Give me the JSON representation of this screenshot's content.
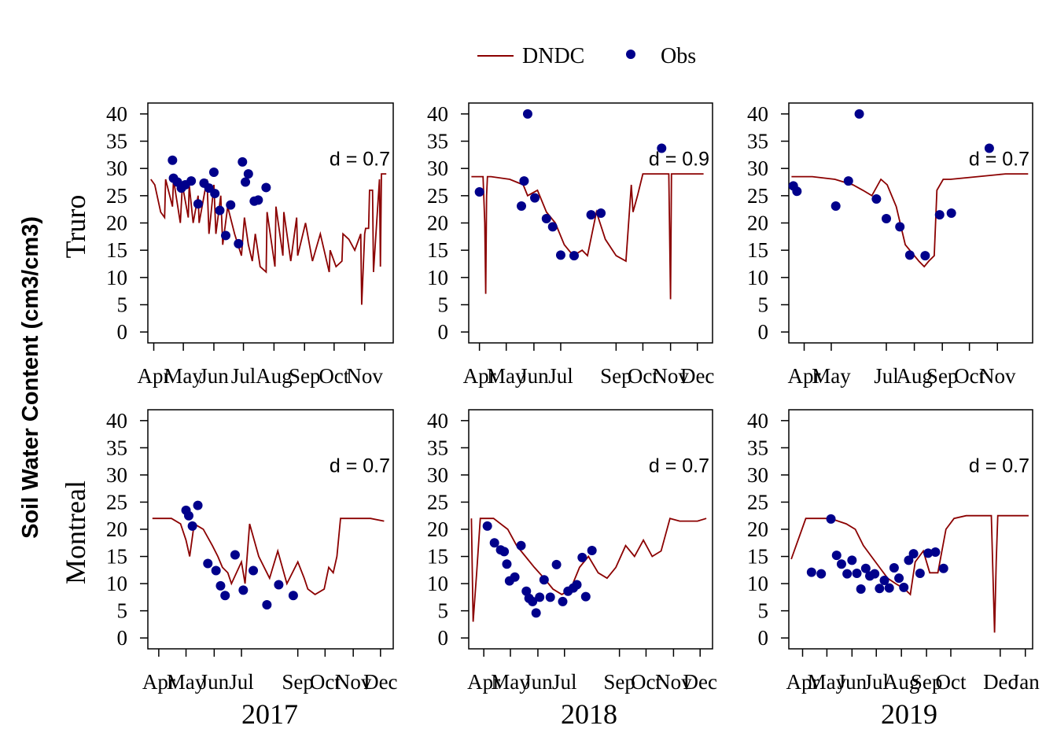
{
  "figure": {
    "ylabel": "Soil Water Content (cm3/cm3)",
    "legend": {
      "placement": "top-center",
      "items": [
        {
          "label": "DNDC",
          "kind": "line",
          "color": "#8b0000"
        },
        {
          "label": "Obs",
          "kind": "point",
          "color": "#00008b"
        }
      ]
    },
    "row_labels": [
      "Truro",
      "Montreal"
    ],
    "col_labels": [
      "2017",
      "2018",
      "2019"
    ],
    "y_ticks": [
      "0",
      "5",
      "10",
      "15",
      "20",
      "25",
      "30",
      "35",
      "40"
    ]
  },
  "chart_data": [
    {
      "type": "line",
      "site": "Truro",
      "year": "2017",
      "annotation": "d = 0.7",
      "x_ticks": [
        "Apr",
        "May",
        "Jun",
        "Jul",
        "Aug",
        "Sep",
        "Oct",
        "Nov"
      ],
      "xlim": [
        "2017-03-26",
        "2017-11-30"
      ],
      "ylim": [
        -2,
        42
      ],
      "series": [
        {
          "name": "DNDC",
          "type": "line",
          "color": "#8b0000",
          "x": [
            "2017-03-29",
            "2017-04-02",
            "2017-04-08",
            "2017-04-12",
            "2017-04-13",
            "2017-04-20",
            "2017-04-21",
            "2017-04-28",
            "2017-04-30",
            "2017-05-06",
            "2017-05-07",
            "2017-05-11",
            "2017-05-16",
            "2017-05-17",
            "2017-05-25",
            "2017-05-27",
            "2017-06-01",
            "2017-06-03",
            "2017-06-08",
            "2017-06-10",
            "2017-06-15",
            "2017-06-22",
            "2017-06-29",
            "2017-07-02",
            "2017-07-06",
            "2017-07-10",
            "2017-07-13",
            "2017-07-18",
            "2017-07-24",
            "2017-07-25",
            "2017-08-02",
            "2017-08-03",
            "2017-08-10",
            "2017-08-11",
            "2017-08-18",
            "2017-08-24",
            "2017-08-25",
            "2017-09-02",
            "2017-09-09",
            "2017-09-17",
            "2017-09-26",
            "2017-09-27",
            "2017-10-03",
            "2017-10-09",
            "2017-10-10",
            "2017-10-16",
            "2017-10-22",
            "2017-10-28",
            "2017-10-29",
            "2017-11-01",
            "2017-11-02",
            "2017-11-05",
            "2017-11-06",
            "2017-11-09",
            "2017-11-10",
            "2017-11-16",
            "2017-11-17",
            "2017-11-18",
            "2017-11-20",
            "2017-11-23"
          ],
          "y": [
            28,
            27,
            22,
            21,
            28,
            23,
            28,
            20,
            27,
            21,
            27,
            20,
            25,
            20,
            28,
            18,
            27,
            18,
            25,
            16,
            23,
            18,
            14,
            21,
            16,
            13,
            18,
            12,
            11,
            22,
            12,
            23,
            14,
            22,
            13,
            21,
            14,
            20,
            13,
            18,
            11,
            15,
            12,
            13,
            18,
            17,
            15,
            18,
            5,
            18,
            19,
            19,
            26,
            26,
            11,
            28,
            12,
            29,
            29,
            29
          ]
        },
        {
          "name": "Obs",
          "type": "scatter",
          "color": "#00008b",
          "x": [
            "2017-04-20",
            "2017-04-21",
            "2017-04-25",
            "2017-04-29",
            "2017-05-03",
            "2017-05-09",
            "2017-05-16",
            "2017-05-22",
            "2017-05-27",
            "2017-06-01",
            "2017-06-02",
            "2017-06-07",
            "2017-06-13",
            "2017-06-18",
            "2017-06-26",
            "2017-06-30",
            "2017-07-03",
            "2017-07-06",
            "2017-07-12",
            "2017-07-16",
            "2017-07-24",
            "2017-07-29",
            "2017-08-12"
          ],
          "y": [
            31.5,
            28.2,
            27.5,
            26.4,
            27.0,
            27.7,
            23.5,
            27.3,
            26.4,
            29.3,
            25.4,
            22.3,
            17.7,
            23.3,
            16.2,
            31.2,
            27.5,
            29.0,
            24.0,
            24.2,
            26.5,
            null,
            null
          ]
        }
      ]
    },
    {
      "type": "line",
      "site": "Truro",
      "year": "2018",
      "annotation": "d = 0.9",
      "x_ticks": [
        "Apr",
        "May",
        "Jun",
        "Jul",
        "Sep",
        "Oct",
        "Nov",
        "Dec"
      ],
      "xlim": [
        "2018-03-20",
        "2018-12-18"
      ],
      "ylim": [
        -2,
        42
      ],
      "series": [
        {
          "name": "DNDC",
          "type": "line",
          "color": "#8b0000",
          "x": [
            "2018-03-23",
            "2018-04-05",
            "2018-04-07",
            "2018-04-08",
            "2018-04-09",
            "2018-04-10",
            "2018-04-14",
            "2018-05-05",
            "2018-05-20",
            "2018-05-25",
            "2018-06-05",
            "2018-06-15",
            "2018-06-25",
            "2018-07-05",
            "2018-07-15",
            "2018-07-25",
            "2018-07-31",
            "2018-08-10",
            "2018-08-20",
            "2018-09-01",
            "2018-09-12",
            "2018-09-18",
            "2018-09-20",
            "2018-09-25",
            "2018-10-01",
            "2018-10-15",
            "2018-10-30",
            "2018-11-01",
            "2018-11-02",
            "2018-11-04",
            "2018-11-20",
            "2018-12-08"
          ],
          "y": [
            28.5,
            28.5,
            20,
            7,
            25,
            28.5,
            28.5,
            28,
            27,
            25,
            26,
            22,
            20,
            16,
            14,
            15,
            14,
            22,
            17,
            14,
            13,
            27,
            22,
            25,
            29,
            29,
            29,
            6,
            29,
            29,
            29,
            29
          ]
        },
        {
          "name": "Obs",
          "type": "scatter",
          "color": "#00008b",
          "x": [
            "2018-04-01",
            "2018-05-18",
            "2018-05-21",
            "2018-05-25",
            "2018-06-02",
            "2018-06-15",
            "2018-06-22",
            "2018-07-01",
            "2018-07-16",
            "2018-08-04",
            "2018-08-15",
            "2018-10-22"
          ],
          "y": [
            25.7,
            23.1,
            27.7,
            40.0,
            24.6,
            20.8,
            19.3,
            14.1,
            14.0,
            21.5,
            21.8,
            33.7
          ]
        }
      ]
    },
    {
      "type": "line",
      "site": "Truro",
      "year": "2019",
      "annotation": "d = 0.7",
      "x_ticks": [
        "Apr",
        "May",
        "Jul",
        "Aug",
        "Sep",
        "Oct",
        "Nov"
      ],
      "xlim": [
        "2019-03-15",
        "2019-12-10"
      ],
      "ylim": [
        -2,
        42
      ],
      "series": [
        {
          "name": "DNDC",
          "type": "line",
          "color": "#8b0000",
          "x": [
            "2019-03-18",
            "2019-04-10",
            "2019-05-05",
            "2019-05-25",
            "2019-06-05",
            "2019-06-15",
            "2019-06-25",
            "2019-07-02",
            "2019-07-12",
            "2019-07-22",
            "2019-08-01",
            "2019-08-06",
            "2019-08-12",
            "2019-08-17",
            "2019-08-23",
            "2019-08-26",
            "2019-09-02",
            "2019-09-10",
            "2019-10-10",
            "2019-11-10",
            "2019-12-05"
          ],
          "y": [
            28.5,
            28.5,
            28,
            27,
            26,
            25,
            28,
            27,
            23,
            16,
            14,
            13,
            12,
            13,
            14,
            26,
            28,
            28,
            28.5,
            29,
            29
          ]
        },
        {
          "name": "Obs",
          "type": "scatter",
          "color": "#00008b",
          "x": [
            "2019-03-20",
            "2019-03-24",
            "2019-05-06",
            "2019-05-20",
            "2019-06-01",
            "2019-06-20",
            "2019-07-01",
            "2019-07-16",
            "2019-07-27",
            "2019-08-13",
            "2019-08-29",
            "2019-09-11",
            "2019-10-23"
          ],
          "y": [
            26.8,
            25.8,
            23.1,
            27.7,
            40.0,
            24.4,
            20.8,
            19.3,
            14.1,
            14.0,
            21.5,
            21.8,
            33.7
          ]
        }
      ]
    },
    {
      "type": "line",
      "site": "Montreal",
      "year": "2017",
      "annotation": "d = 0.7",
      "x_ticks": [
        "Apr",
        "May",
        "Jun",
        "Jul",
        "Sep",
        "Oct",
        "Nov",
        "Dec"
      ],
      "xlim": [
        "2017-03-20",
        "2017-12-15"
      ],
      "ylim": [
        -2,
        42
      ],
      "series": [
        {
          "name": "DNDC",
          "type": "line",
          "color": "#8b0000",
          "x": [
            "2017-03-25",
            "2017-04-15",
            "2017-04-25",
            "2017-05-01",
            "2017-05-05",
            "2017-05-10",
            "2017-05-20",
            "2017-05-30",
            "2017-06-05",
            "2017-06-10",
            "2017-06-16",
            "2017-06-20",
            "2017-07-01",
            "2017-07-05",
            "2017-07-10",
            "2017-07-20",
            "2017-08-01",
            "2017-08-10",
            "2017-08-20",
            "2017-09-01",
            "2017-09-08",
            "2017-09-12",
            "2017-09-20",
            "2017-09-30",
            "2017-10-05",
            "2017-10-10",
            "2017-10-14",
            "2017-10-18",
            "2017-11-01",
            "2017-11-20",
            "2017-12-05"
          ],
          "y": [
            22,
            22,
            21,
            18,
            15,
            21,
            20,
            17,
            15,
            13,
            12,
            10,
            14,
            10,
            21,
            15,
            11,
            16,
            10,
            14,
            11,
            9,
            8,
            9,
            13,
            12,
            15,
            22,
            22,
            22,
            21.5
          ]
        },
        {
          "name": "Obs",
          "type": "scatter",
          "color": "#00008b",
          "x": [
            "2017-05-01",
            "2017-05-04",
            "2017-05-08",
            "2017-05-14",
            "2017-05-25",
            "2017-06-03",
            "2017-06-08",
            "2017-06-13",
            "2017-06-24",
            "2017-07-03",
            "2017-07-14",
            "2017-07-29",
            "2017-08-11",
            "2017-08-27"
          ],
          "y": [
            23.5,
            22.5,
            20.6,
            24.4,
            13.7,
            12.4,
            9.6,
            7.8,
            15.3,
            8.8,
            12.4,
            6.1,
            9.8,
            7.8
          ]
        }
      ]
    },
    {
      "type": "line",
      "site": "Montreal",
      "year": "2018",
      "annotation": "d = 0.7",
      "x_ticks": [
        "Apr",
        "May",
        "Jun",
        "Jul",
        "Sep",
        "Oct",
        "Nov",
        "Dec"
      ],
      "xlim": [
        "2018-03-15",
        "2018-12-15"
      ],
      "ylim": [
        -2,
        42
      ],
      "series": [
        {
          "name": "DNDC",
          "type": "line",
          "color": "#8b0000",
          "x": [
            "2018-03-18",
            "2018-03-20",
            "2018-03-24",
            "2018-03-28",
            "2018-04-12",
            "2018-04-28",
            "2018-05-08",
            "2018-05-18",
            "2018-05-28",
            "2018-06-08",
            "2018-06-18",
            "2018-06-28",
            "2018-07-08",
            "2018-07-18",
            "2018-07-28",
            "2018-08-08",
            "2018-08-18",
            "2018-08-28",
            "2018-09-08",
            "2018-09-18",
            "2018-09-28",
            "2018-10-08",
            "2018-10-18",
            "2018-10-28",
            "2018-11-08",
            "2018-11-28",
            "2018-12-08"
          ],
          "y": [
            22,
            3,
            12,
            22,
            22,
            20,
            17,
            15,
            13,
            11,
            9,
            8,
            9,
            13,
            15,
            12,
            11,
            13,
            17,
            15,
            18,
            15,
            16,
            22,
            21.5,
            21.5,
            22
          ]
        },
        {
          "name": "Obs",
          "type": "scatter",
          "color": "#00008b",
          "x": [
            "2018-04-05",
            "2018-04-13",
            "2018-04-20",
            "2018-04-24",
            "2018-04-27",
            "2018-04-30",
            "2018-05-06",
            "2018-05-13",
            "2018-05-19",
            "2018-05-22",
            "2018-05-26",
            "2018-05-30",
            "2018-06-03",
            "2018-06-08",
            "2018-06-15",
            "2018-06-22",
            "2018-06-29",
            "2018-07-05",
            "2018-07-11",
            "2018-07-15",
            "2018-07-21",
            "2018-07-25",
            "2018-08-01",
            "2018-08-05"
          ],
          "y": [
            20.6,
            17.5,
            16.2,
            15.9,
            13.6,
            10.5,
            11.2,
            17.0,
            8.6,
            7.3,
            6.7,
            4.6,
            7.5,
            10.7,
            7.5,
            13.5,
            6.7,
            8.6,
            9.2,
            9.8,
            14.8,
            7.6,
            16.1,
            null
          ]
        }
      ]
    },
    {
      "type": "line",
      "site": "Montreal",
      "year": "2019",
      "annotation": "d = 0.7",
      "x_ticks": [
        "Apr",
        "May",
        "Jun",
        "Jul",
        "Aug",
        "Sep",
        "Oct",
        "Dec",
        "Jan"
      ],
      "xlim": [
        "2019-03-15",
        "2020-01-10"
      ],
      "ylim": [
        -2,
        42
      ],
      "series": [
        {
          "name": "DNDC",
          "type": "line",
          "color": "#8b0000",
          "x": [
            "2019-03-18",
            "2019-04-05",
            "2019-05-05",
            "2019-05-25",
            "2019-06-05",
            "2019-06-15",
            "2019-06-25",
            "2019-07-05",
            "2019-07-15",
            "2019-07-25",
            "2019-08-05",
            "2019-08-12",
            "2019-08-18",
            "2019-08-28",
            "2019-09-05",
            "2019-09-15",
            "2019-09-25",
            "2019-10-05",
            "2019-10-20",
            "2019-11-01",
            "2019-11-20",
            "2019-11-24",
            "2019-11-26",
            "2019-11-28",
            "2019-12-15",
            "2020-01-05"
          ],
          "y": [
            14.5,
            22,
            22,
            21,
            20,
            17,
            15,
            13,
            11,
            10,
            9,
            8,
            14,
            16,
            12,
            12,
            20,
            22,
            22.5,
            22.5,
            22.5,
            1,
            14,
            22.5,
            22.5,
            22.5
          ]
        },
        {
          "name": "Obs",
          "type": "scatter",
          "color": "#00008b",
          "x": [
            "2019-04-12",
            "2019-04-24",
            "2019-05-06",
            "2019-05-13",
            "2019-05-19",
            "2019-05-26",
            "2019-06-01",
            "2019-06-07",
            "2019-06-12",
            "2019-06-18",
            "2019-06-23",
            "2019-06-29",
            "2019-07-05",
            "2019-07-11",
            "2019-07-17",
            "2019-07-23",
            "2019-07-29",
            "2019-08-04",
            "2019-08-10",
            "2019-08-16",
            "2019-08-24",
            "2019-09-03",
            "2019-09-12",
            "2019-09-22"
          ],
          "y": [
            12.1,
            11.8,
            21.9,
            15.2,
            13.6,
            11.8,
            14.3,
            11.9,
            9.0,
            12.8,
            11.4,
            11.8,
            9.1,
            10.6,
            9.2,
            12.9,
            11.0,
            9.3,
            14.3,
            15.5,
            11.9,
            15.6,
            15.8,
            12.8
          ]
        }
      ]
    }
  ]
}
